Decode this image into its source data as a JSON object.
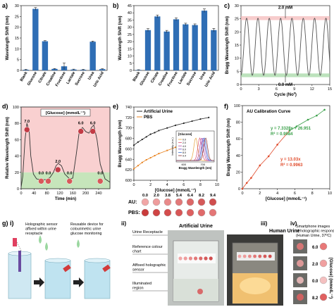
{
  "panels": {
    "a": "a)",
    "b": "b)",
    "c": "c)",
    "d": "d)",
    "e": "e)",
    "f": "f)",
    "g": "g) i)",
    "gii": "ii)",
    "giii": "iii)",
    "giv": "iv)"
  },
  "chart_data": [
    {
      "id": "a",
      "type": "bar",
      "ylabel": "Wavelength Shift (nm)",
      "ylim": [
        0,
        30
      ],
      "yticks": [
        0,
        5,
        10,
        15,
        20,
        25,
        30
      ],
      "categories": [
        "Blank",
        "Glucose",
        "Citrate",
        "Creatine",
        "Fructose",
        "Lactate",
        "Sucrose",
        "Urea",
        "Uric Acid"
      ],
      "values": [
        0.3,
        28.5,
        13.5,
        0.7,
        1.9,
        0.4,
        0.3,
        13.3,
        0.6
      ],
      "errors": [
        0.2,
        0.6,
        0.3,
        0.2,
        1.5,
        0.2,
        0.2,
        0.3,
        0.2
      ],
      "color": "#2f6eb5"
    },
    {
      "id": "b",
      "type": "bar",
      "ylabel": "Wavelength Shift (nm)",
      "ylim": [
        0,
        45
      ],
      "yticks": [
        0,
        5,
        10,
        15,
        20,
        25,
        30,
        35,
        40,
        45
      ],
      "categories": [
        "Blank",
        "Glucose",
        "Citrate",
        "Creatine",
        "Fructose",
        "Lactate",
        "Sucrose",
        "Urea",
        "Uric Acid"
      ],
      "values": [
        0.3,
        28.0,
        37.5,
        27.0,
        35.5,
        32.0,
        31.5,
        41.5,
        28.0
      ],
      "errors": [
        0.2,
        1.0,
        1.0,
        0.8,
        1.0,
        0.8,
        0.8,
        1.2,
        1.2
      ],
      "color": "#2f6eb5"
    },
    {
      "id": "c",
      "type": "line",
      "xlabel": "Cycle (Noº)",
      "ylabel": "Bragg Wavelength Shift (nm)",
      "xlim": [
        0,
        15
      ],
      "xticks": [
        0,
        3,
        6,
        9,
        12,
        15
      ],
      "ylim": [
        0,
        30
      ],
      "yticks": [
        0,
        5,
        10,
        15,
        20,
        25,
        30
      ],
      "cycles": 8,
      "ymin": 3.5,
      "ymax": 25.2,
      "annotation_top": "2.0 mM",
      "annotation_bottom": "0.0 mM",
      "color": "#555555"
    },
    {
      "id": "d",
      "type": "line",
      "xlabel": "Time (min)",
      "ylabel": "Relative Wavelength Shift (nm)",
      "xlim": [
        0,
        275
      ],
      "xticks": [
        0,
        40,
        80,
        120,
        160,
        200,
        240
      ],
      "ylim": [
        0,
        100
      ],
      "yticks": [
        0,
        20,
        40,
        60,
        80,
        100
      ],
      "legend": "[Glucose] (mmolL⁻¹)",
      "x": [
        0,
        5,
        12,
        18,
        25,
        30,
        38,
        48,
        60,
        70,
        80,
        90,
        100,
        108,
        115,
        125,
        135,
        150,
        160,
        170,
        180,
        190,
        200,
        210,
        218,
        225,
        235,
        245,
        260,
        275
      ],
      "y": [
        2,
        15,
        60,
        80,
        70,
        40,
        18,
        12,
        11,
        11,
        11,
        14,
        20,
        28,
        31,
        28,
        18,
        12,
        13,
        40,
        70,
        75,
        70,
        68,
        75,
        78,
        60,
        30,
        12,
        8
      ],
      "labels": [
        {
          "t": 18,
          "v": 80,
          "text": "7.0"
        },
        {
          "t": 62,
          "v": 17,
          "text": "0.0"
        },
        {
          "t": 84,
          "v": 17,
          "text": "0.0"
        },
        {
          "t": 114,
          "v": 31,
          "text": "2.0"
        },
        {
          "t": 150,
          "v": 17,
          "text": "0.0"
        },
        {
          "t": 185,
          "v": 78,
          "text": "6.0"
        },
        {
          "t": 222,
          "v": 78,
          "text": "6.0"
        },
        {
          "t": 245,
          "v": 17,
          "text": "0.0"
        }
      ],
      "color": "#333333"
    },
    {
      "id": "e",
      "type": "line",
      "xlabel": "[Glucose] (mmolL⁻¹)",
      "ylabel": "Bragg Wavelength (nm)",
      "xlim": [
        0,
        10
      ],
      "xticks": [
        0,
        2,
        4,
        6,
        8,
        10
      ],
      "ylim": [
        600,
        740
      ],
      "yticks": [
        600,
        620,
        640,
        660,
        680,
        700,
        720,
        740
      ],
      "series": [
        {
          "name": "Artificial Urine",
          "color": "#222222",
          "x": [
            0,
            0.5,
            1,
            1.5,
            2,
            2.5,
            3,
            4,
            5,
            6,
            7,
            8,
            9
          ],
          "y": [
            667,
            673,
            678,
            683,
            688,
            691,
            695,
            700,
            705,
            709,
            713,
            717,
            720
          ]
        },
        {
          "name": "PBS",
          "color": "#e8821e",
          "x": [
            0,
            0.5,
            1,
            1.5,
            2,
            2.5,
            3,
            4,
            5,
            6,
            7,
            8,
            9
          ],
          "y": [
            622,
            628,
            634,
            639,
            643,
            647,
            651,
            657,
            663,
            668,
            673,
            678,
            682
          ]
        }
      ],
      "inset": {
        "title": "[Glucose]",
        "xlabel": "Bragg Wavelength (nm)",
        "ylabel": "Intensity (a.u.)",
        "xticks": [
          600,
          700
        ],
        "levels": [
          "0.0",
          "2.0",
          "4.0",
          "6.0",
          "8.0",
          "9.4"
        ],
        "peaks": [
          663,
          684,
          694,
          702,
          708,
          715
        ],
        "colors": [
          "#e6a23c",
          "#d94f70",
          "#b04aa8",
          "#6a48c2",
          "#3a6fd1",
          "#8a3030"
        ]
      }
    },
    {
      "id": "f",
      "type": "scatter",
      "title": "AU Calibration Curve",
      "xlabel": "[Glucose] (mmolL⁻¹)",
      "ylabel": "Bragg Wavelength Shift (nm)",
      "xlim": [
        0,
        10
      ],
      "xticks": [
        0,
        2,
        4,
        6,
        8,
        10
      ],
      "ylim": [
        0,
        100
      ],
      "yticks": [
        0,
        20,
        40,
        60,
        80,
        100
      ],
      "series": [
        {
          "name": "low",
          "color": "#e04a2a",
          "x": [
            0,
            0.5,
            1,
            2,
            3,
            4,
            5.4
          ],
          "y": [
            0,
            7,
            13,
            28,
            39,
            53,
            70
          ]
        },
        {
          "name": "high",
          "color": "#3aa04a",
          "x": [
            5.4,
            6.2,
            7.5,
            8.5,
            9.4
          ],
          "y": [
            70,
            75,
            83,
            88,
            95
          ]
        }
      ],
      "fit_high": {
        "eq": "y = 7.3328x + 26.951",
        "r2": "R² = 0.9984"
      },
      "fit_low": {
        "eq": "y = 13.03x",
        "r2": "R² = 0.9963"
      }
    }
  ],
  "color_chart": {
    "au_label": "AU:",
    "pbs_label": "PBS:",
    "levels": [
      "0.0",
      "2.0",
      "3.8",
      "5.4",
      "6.4",
      "8.2",
      "9.4"
    ],
    "au_colors": [
      "#f1a6a6",
      "#ee9c9c",
      "#e98a8a",
      "#e27878",
      "#dc6868",
      "#d55a5a",
      "#d04e4e"
    ],
    "pbs_colors": [
      "#c93b3b",
      "#cf4444",
      "#d44c4c",
      "#d85656",
      "#dd6060",
      "#e06a6a",
      "#e47676"
    ]
  },
  "panel_g": {
    "holographic_sensor": "Holographic sensor affixed within urine receptacle",
    "reusable_device": "Reusable device for colourimetric urine glucose monitoring",
    "urine_receptacle": "Urine Receptacle",
    "reference_chart": "Reference colour chart",
    "affixed_sensor": "Affixed holographic sensor",
    "illuminated": "Illuminated region",
    "artificial_urine": "Artificial Urine",
    "human_urine": "Human Urine",
    "smartphone_caption": "Smartphone images of holographic response (Human Urine, 37ºC)",
    "glucose_axis": "[Glucose] (mmolL⁻¹)",
    "iv_levels": [
      "6.0",
      "2.0",
      "0.0",
      "8.2"
    ],
    "iv_colors": [
      "#e87878",
      "#f0a0a0",
      "#f4c0c0",
      "#e06060"
    ]
  }
}
